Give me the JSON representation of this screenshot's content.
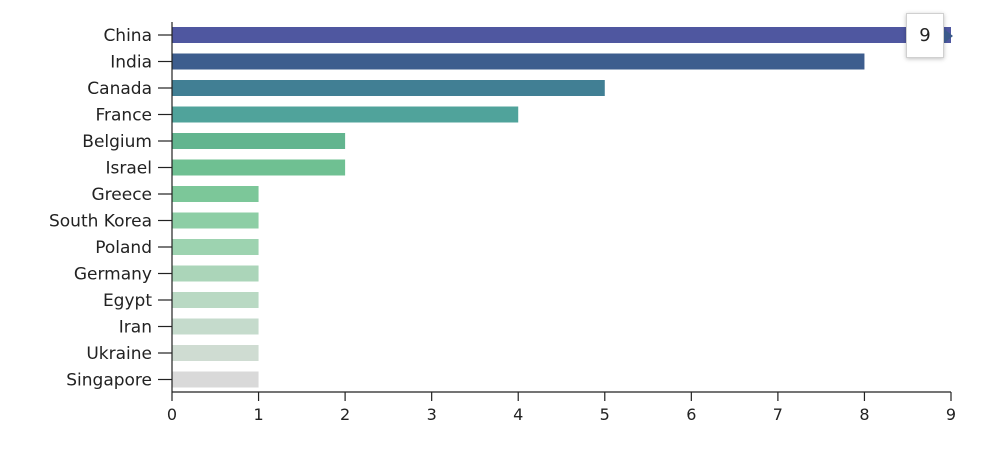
{
  "chart_data": {
    "type": "bar",
    "orientation": "horizontal",
    "categories": [
      "China",
      "India",
      "Canada",
      "France",
      "Belgium",
      "Israel",
      "Greece",
      "South Korea",
      "Poland",
      "Germany",
      "Egypt",
      "Iran",
      "Ukraine",
      "Singapore"
    ],
    "values": [
      9,
      8,
      5,
      4,
      2,
      2,
      1,
      1,
      1,
      1,
      1,
      1,
      1,
      1
    ],
    "colors": [
      "#4f57a0",
      "#3d5d8e",
      "#417f94",
      "#50a39b",
      "#62b58f",
      "#6fc092",
      "#7cc799",
      "#8dcea5",
      "#9dd3b0",
      "#abd5b9",
      "#b9d9c3",
      "#c5dbcc",
      "#cfdcd2",
      "#d9d9d9"
    ],
    "xlim": [
      0,
      9
    ],
    "xticks": [
      0,
      1,
      2,
      3,
      4,
      5,
      6,
      7,
      8,
      9
    ],
    "grid": false
  },
  "tooltip": {
    "value": "9"
  }
}
